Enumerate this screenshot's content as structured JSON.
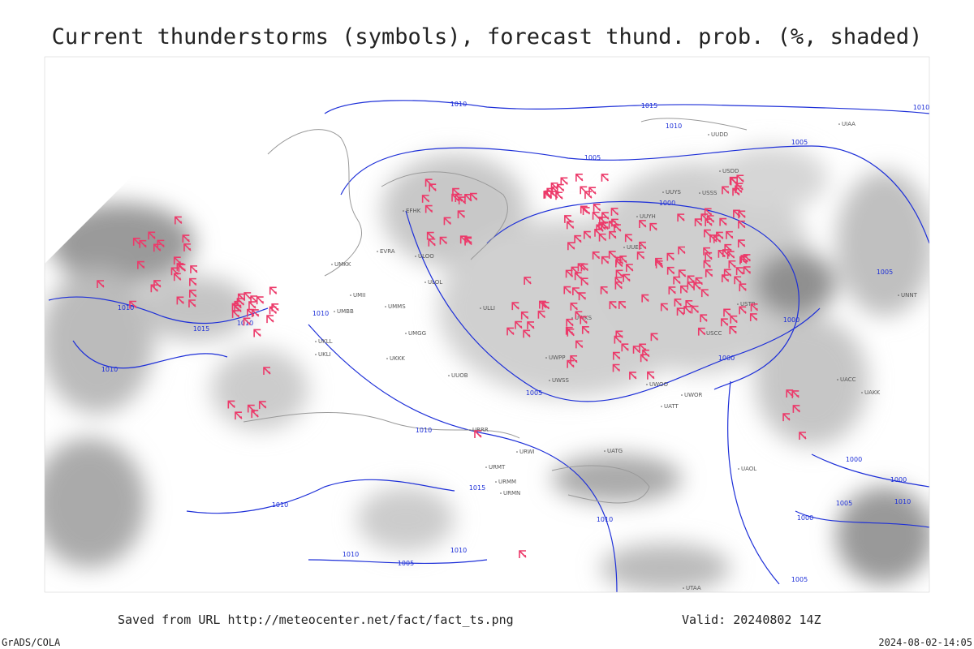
{
  "header": {
    "title": "Current thunderstorms (symbols), forecast thund. prob. (%, shaded)"
  },
  "map": {
    "isobar_labels": [
      "1010",
      "1015",
      "1010",
      "1005",
      "1005",
      "1000",
      "1010",
      "1005",
      "1000",
      "1000",
      "1010",
      "1015",
      "1010",
      "1010",
      "1010",
      "1005",
      "1010",
      "1015",
      "1010",
      "1010",
      "1005",
      "1010",
      "1010",
      "1000",
      "1000",
      "1005",
      "1010",
      "1000",
      "1005"
    ],
    "station_labels": [
      "ULOO",
      "ULOL",
      "UMMS",
      "UMGG",
      "UKKK",
      "UUOB",
      "UWPP",
      "UWSS",
      "URRR",
      "URWI",
      "URMT",
      "URMM",
      "URMN",
      "UWKS",
      "UUEE",
      "UWOO",
      "UWOR",
      "UATT",
      "UATG",
      "UTAA",
      "USCC",
      "USTR",
      "UUYH",
      "UUYS",
      "USSS",
      "UNNT",
      "UACC",
      "UAKK",
      "UAOL",
      "ULLI",
      "UKLL",
      "UKLI",
      "UMBB",
      "EVRA",
      "UMKK",
      "EFHK",
      "UUDD",
      "UIAA",
      "USDD",
      "UMII"
    ]
  },
  "footer": {
    "url": "Saved from URL http://meteocenter.net/fact/fact_ts.png",
    "valid": "Valid: 20240802 14Z",
    "software": "GrADS/COLA",
    "timestamp": "2024-08-02-14:05"
  }
}
